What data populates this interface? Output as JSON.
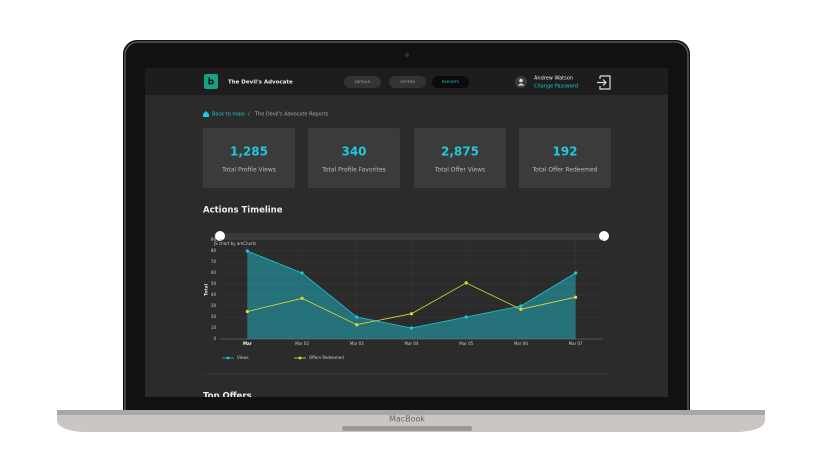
{
  "header": {
    "app_name": "The Devil's Advocate",
    "tabs": [
      "DETAILS",
      "OFFERS",
      "REPORTS"
    ],
    "user_name": "Andrew Watson",
    "user_link": "Change Password"
  },
  "breadcrumb": {
    "back": "Back to main",
    "separator": "/",
    "current": "The Devil's Advocate Reports"
  },
  "stats": [
    {
      "value": "1,285",
      "label": "Total Profile Views"
    },
    {
      "value": "340",
      "label": "Total Profile Favorites"
    },
    {
      "value": "2,875",
      "label": "Total Offer Views"
    },
    {
      "value": "192",
      "label": "Total Offer Redeemed"
    }
  ],
  "section_title": "Actions Timeline",
  "chart_data": {
    "type": "line",
    "credit": "JS chart by amCharts",
    "y_label": "Total",
    "categories": [
      "Mar",
      "Mar 02",
      "Mar 03",
      "Mar 04",
      "Mar 05",
      "Mar 06",
      "Mar 07"
    ],
    "series": [
      {
        "name": "Views",
        "color": "#1fc8db",
        "area": true,
        "values": [
          80,
          60,
          20,
          10,
          20,
          30,
          60
        ]
      },
      {
        "name": "Offers Redeemed",
        "color": "#e2dc2c",
        "area": false,
        "values": [
          25,
          37,
          13,
          23,
          51,
          27,
          38
        ]
      }
    ],
    "ylim": [
      0,
      90
    ],
    "yticks": [
      0,
      10,
      20,
      30,
      40,
      50,
      60,
      70,
      80,
      90
    ],
    "grid": true
  },
  "next_section_title": "Top Offers",
  "device_label": "MacBook"
}
